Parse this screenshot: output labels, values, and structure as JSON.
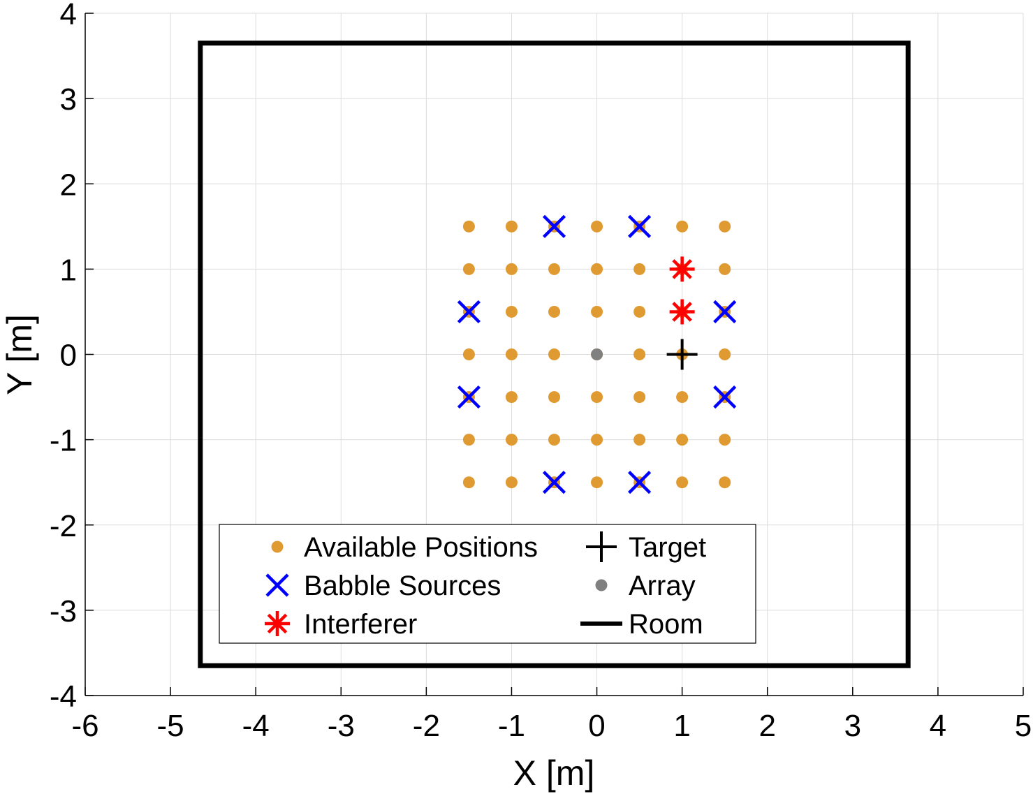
{
  "chart_data": {
    "type": "scatter",
    "xlabel": "X [m]",
    "ylabel": "Y [m]",
    "xlim": [
      -6,
      5
    ],
    "ylim": [
      -4,
      4
    ],
    "xticks": [
      -6,
      -5,
      -4,
      -3,
      -2,
      -1,
      0,
      1,
      2,
      3,
      4,
      5
    ],
    "yticks": [
      -4,
      -3,
      -2,
      -1,
      0,
      1,
      2,
      3,
      4
    ],
    "xtick_labels": [
      "-6",
      "-5",
      "-4",
      "-3",
      "-2",
      "-1",
      "0",
      "1",
      "2",
      "3",
      "4",
      "5"
    ],
    "ytick_labels": [
      "-4",
      "-3",
      "-2",
      "-1",
      "0",
      "1",
      "2",
      "3",
      "4"
    ],
    "grid": true,
    "legend_position": "bottom-center",
    "series": [
      {
        "name": "Available Positions",
        "marker": "dot",
        "color": "#E09A32",
        "grid_x": [
          -1.5,
          -1,
          -0.5,
          0,
          0.5,
          1,
          1.5
        ],
        "grid_y": [
          -1.5,
          -1,
          -0.5,
          0,
          0.5,
          1,
          1.5
        ]
      },
      {
        "name": "Babble Sources",
        "marker": "x",
        "color": "#0000FF",
        "points": [
          [
            -0.5,
            1.5
          ],
          [
            0.5,
            1.5
          ],
          [
            -1.5,
            0.5
          ],
          [
            1.5,
            0.5
          ],
          [
            -1.5,
            -0.5
          ],
          [
            1.5,
            -0.5
          ],
          [
            -0.5,
            -1.5
          ],
          [
            0.5,
            -1.5
          ]
        ]
      },
      {
        "name": "Interferer",
        "marker": "asterisk",
        "color": "#FF0000",
        "points": [
          [
            1,
            1
          ],
          [
            1,
            0.5
          ]
        ]
      },
      {
        "name": "Target",
        "marker": "plus",
        "color": "#000000",
        "points": [
          [
            1,
            0
          ]
        ]
      },
      {
        "name": "Array",
        "marker": "dot",
        "color": "#808080",
        "points": [
          [
            0,
            0
          ]
        ]
      },
      {
        "name": "Room",
        "marker": "line",
        "color": "#000000",
        "rect": {
          "x0": -4.65,
          "x1": 3.65,
          "y0": -3.65,
          "y1": 3.65
        }
      }
    ]
  }
}
